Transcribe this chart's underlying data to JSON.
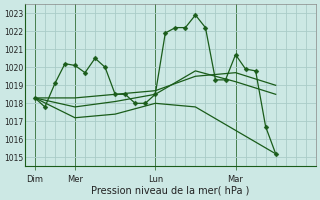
{
  "background_color": "#cce8e4",
  "grid_color": "#aaccc8",
  "line_color": "#1a5c1a",
  "xlabel": "Pression niveau de la mer( hPa )",
  "ylim": [
    1014.5,
    1023.5
  ],
  "yticks": [
    1015,
    1016,
    1017,
    1018,
    1019,
    1020,
    1021,
    1022,
    1023
  ],
  "day_labels": [
    "Dim",
    "Mer",
    "Lun",
    "Mar"
  ],
  "day_positions": [
    0,
    24,
    72,
    120
  ],
  "vline_positions": [
    0,
    24,
    72,
    120
  ],
  "xlim": [
    -6,
    168
  ],
  "series_main": {
    "x": [
      0,
      6,
      12,
      18,
      24,
      30,
      36,
      42,
      48,
      54,
      60,
      66,
      72,
      78,
      84,
      90,
      96,
      102,
      108,
      114,
      120,
      126,
      132,
      138,
      144
    ],
    "y": [
      1018.3,
      1017.8,
      1019.1,
      1020.2,
      1020.1,
      1019.7,
      1020.5,
      1020.0,
      1018.5,
      1018.5,
      1018.0,
      1018.0,
      1018.5,
      1021.9,
      1022.2,
      1022.2,
      1022.9,
      1022.2,
      1019.3,
      1019.3,
      1020.7,
      1019.9,
      1019.8,
      1016.7,
      1015.2
    ],
    "marker": "D",
    "markersize": 2.5
  },
  "series_smooth": [
    {
      "x": [
        0,
        24,
        48,
        72,
        96,
        120,
        144
      ],
      "y": [
        1018.3,
        1018.3,
        1018.5,
        1018.7,
        1019.5,
        1019.7,
        1019.0
      ]
    },
    {
      "x": [
        0,
        24,
        48,
        72,
        96,
        120,
        144
      ],
      "y": [
        1018.3,
        1017.2,
        1017.4,
        1018.0,
        1017.8,
        1016.5,
        1015.2
      ]
    },
    {
      "x": [
        0,
        24,
        48,
        72,
        96,
        120,
        144
      ],
      "y": [
        1018.3,
        1017.8,
        1018.1,
        1018.5,
        1019.8,
        1019.2,
        1018.5
      ]
    }
  ]
}
